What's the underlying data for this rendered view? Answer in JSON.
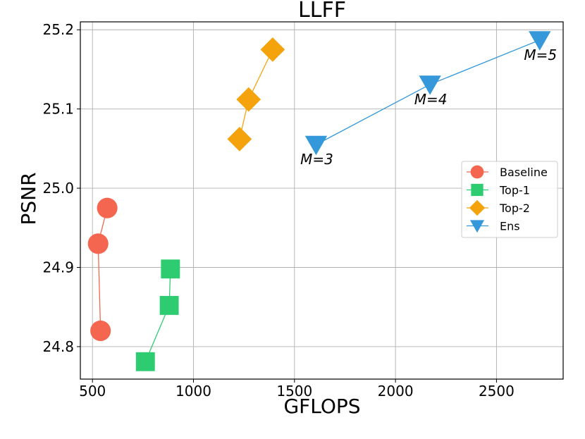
{
  "chart_data": {
    "type": "line",
    "title": "LLFF",
    "xlabel": "GFLOPS",
    "ylabel": "PSNR",
    "xlim": [
      440,
      2830
    ],
    "ylim": [
      24.759,
      25.21
    ],
    "xticks": [
      500,
      1000,
      1500,
      2000,
      2500
    ],
    "yticks": [
      24.8,
      24.9,
      25.0,
      25.1,
      25.2
    ],
    "ytick_labels": [
      "24.8",
      "24.9",
      "25.0",
      "25.1",
      "25.2"
    ],
    "grid": true,
    "legend_position": "center-right",
    "series": [
      {
        "name": "Baseline",
        "color": "#f4664f",
        "marker": "circle",
        "x": [
          540,
          528,
          573
        ],
        "y": [
          24.82,
          24.93,
          24.975
        ]
      },
      {
        "name": "Top-1",
        "color": "#2ecc71",
        "marker": "square",
        "x": [
          762,
          880,
          886
        ],
        "y": [
          24.781,
          24.852,
          24.898
        ]
      },
      {
        "name": "Top-2",
        "color": "#f5a30c",
        "marker": "diamond",
        "x": [
          1228,
          1273,
          1392
        ],
        "y": [
          25.062,
          25.112,
          25.175
        ]
      },
      {
        "name": "Ens",
        "color": "#3498db",
        "marker": "triangle-down",
        "x": [
          1607,
          2171,
          2714
        ],
        "y": [
          25.055,
          25.131,
          25.187
        ]
      }
    ],
    "annotations": [
      {
        "text": "M=3",
        "x": 1607,
        "y": 25.055
      },
      {
        "text": "M=4",
        "x": 2171,
        "y": 25.131
      },
      {
        "text": "M=5",
        "x": 2714,
        "y": 25.187
      }
    ]
  }
}
